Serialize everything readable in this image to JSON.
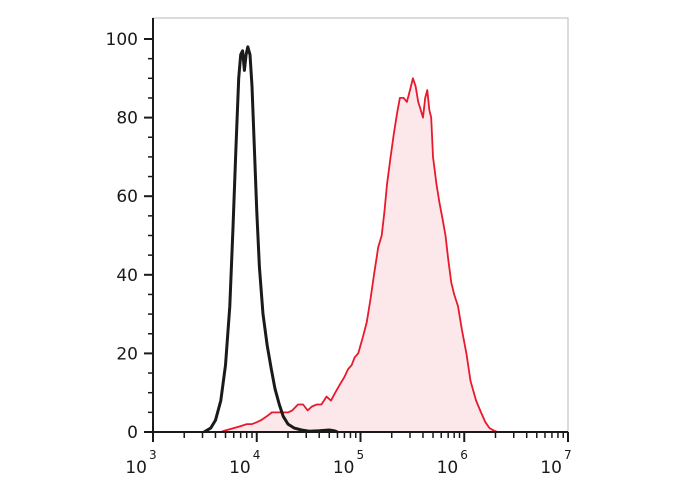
{
  "chart_data": {
    "type": "area",
    "title": "",
    "xlabel": "",
    "ylabel": "",
    "x_scale": "log",
    "xlim": [
      1000,
      10000000
    ],
    "ylim": [
      0,
      100
    ],
    "x_ticks": [
      {
        "base": "10",
        "exp": "3",
        "value": 1000
      },
      {
        "base": "10",
        "exp": "4",
        "value": 10000
      },
      {
        "base": "10",
        "exp": "5",
        "value": 100000
      },
      {
        "base": "10",
        "exp": "6",
        "value": 1000000
      },
      {
        "base": "10",
        "exp": "7",
        "value": 10000000
      }
    ],
    "y_ticks": [
      {
        "label": "0",
        "value": 0
      },
      {
        "label": "20",
        "value": 20
      },
      {
        "label": "40",
        "value": 40
      },
      {
        "label": "60",
        "value": 60
      },
      {
        "label": "80",
        "value": 80
      },
      {
        "label": "100",
        "value": 100
      }
    ],
    "grid": false,
    "legend": "none",
    "series": [
      {
        "color": "#1a1a1a",
        "fill": "none",
        "points": [
          [
            3100,
            0
          ],
          [
            3600,
            1
          ],
          [
            4000,
            3
          ],
          [
            4500,
            8
          ],
          [
            5000,
            17
          ],
          [
            5500,
            32
          ],
          [
            5900,
            52
          ],
          [
            6300,
            72
          ],
          [
            6700,
            90
          ],
          [
            7000,
            96
          ],
          [
            7300,
            97
          ],
          [
            7600,
            92
          ],
          [
            7900,
            96
          ],
          [
            8200,
            98
          ],
          [
            8600,
            96
          ],
          [
            9000,
            88
          ],
          [
            9500,
            72
          ],
          [
            10000,
            56
          ],
          [
            10600,
            42
          ],
          [
            11500,
            30
          ],
          [
            12600,
            22
          ],
          [
            13800,
            16
          ],
          [
            15000,
            11
          ],
          [
            16500,
            7
          ],
          [
            18000,
            4
          ],
          [
            20000,
            2
          ],
          [
            23000,
            1
          ],
          [
            27000,
            0.5
          ],
          [
            32000,
            0.2
          ],
          [
            40000,
            0.3
          ],
          [
            50000,
            0.5
          ],
          [
            56000,
            0.3
          ],
          [
            60000,
            0
          ]
        ]
      },
      {
        "color": "#e8192c",
        "fill": "#fce8ea",
        "points": [
          [
            4500,
            0
          ],
          [
            5000,
            0.4
          ],
          [
            6000,
            1
          ],
          [
            7000,
            1.5
          ],
          [
            8000,
            2
          ],
          [
            9000,
            2
          ],
          [
            10000,
            2.5
          ],
          [
            11000,
            3
          ],
          [
            12500,
            4
          ],
          [
            14000,
            5
          ],
          [
            16000,
            5
          ],
          [
            18000,
            5
          ],
          [
            20000,
            5
          ],
          [
            22000,
            5.5
          ],
          [
            25000,
            7
          ],
          [
            28000,
            7
          ],
          [
            31000,
            5.5
          ],
          [
            34000,
            6.5
          ],
          [
            38000,
            7
          ],
          [
            42000,
            7
          ],
          [
            47000,
            9
          ],
          [
            52000,
            8
          ],
          [
            57000,
            10
          ],
          [
            63000,
            12
          ],
          [
            70000,
            14
          ],
          [
            76000,
            16
          ],
          [
            82000,
            17
          ],
          [
            88000,
            19
          ],
          [
            95000,
            20
          ],
          [
            105000,
            24
          ],
          [
            115000,
            28
          ],
          [
            125000,
            34
          ],
          [
            135000,
            40
          ],
          [
            148000,
            47
          ],
          [
            160000,
            50
          ],
          [
            170000,
            56
          ],
          [
            180000,
            63
          ],
          [
            195000,
            70
          ],
          [
            210000,
            76
          ],
          [
            225000,
            81
          ],
          [
            240000,
            85
          ],
          [
            260000,
            85
          ],
          [
            280000,
            84
          ],
          [
            300000,
            87
          ],
          [
            320000,
            90
          ],
          [
            340000,
            88
          ],
          [
            360000,
            84
          ],
          [
            380000,
            82
          ],
          [
            400000,
            80
          ],
          [
            420000,
            85
          ],
          [
            440000,
            87
          ],
          [
            460000,
            82
          ],
          [
            480000,
            80
          ],
          [
            500000,
            70
          ],
          [
            540000,
            63
          ],
          [
            580000,
            58
          ],
          [
            620000,
            54
          ],
          [
            660000,
            50
          ],
          [
            700000,
            44
          ],
          [
            750000,
            38
          ],
          [
            800000,
            35
          ],
          [
            870000,
            32
          ],
          [
            950000,
            26
          ],
          [
            1050000,
            20
          ],
          [
            1150000,
            13
          ],
          [
            1300000,
            8
          ],
          [
            1450000,
            5
          ],
          [
            1600000,
            2.5
          ],
          [
            1750000,
            1
          ],
          [
            1950000,
            0.3
          ],
          [
            2100000,
            0
          ]
        ]
      }
    ]
  }
}
